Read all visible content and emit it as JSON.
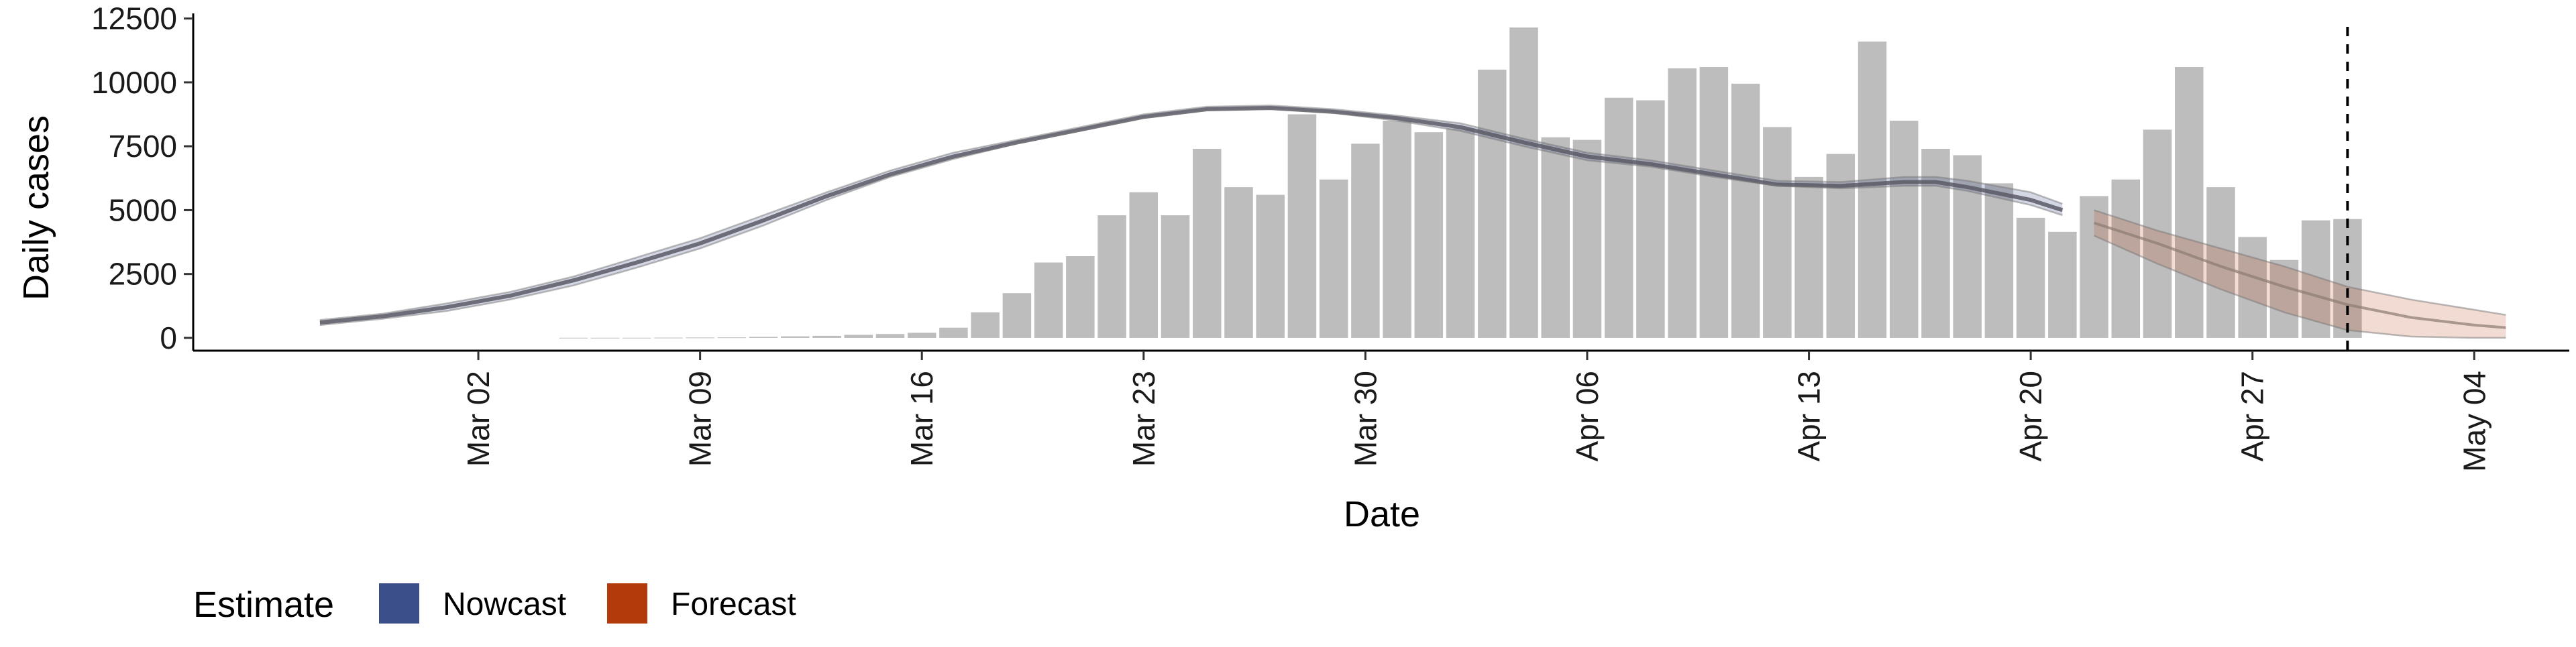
{
  "chart_data": {
    "type": "bar",
    "xlabel": "Date",
    "ylabel": "Daily cases",
    "ylim": [
      -500,
      12700
    ],
    "y_ticks": [
      0,
      2500,
      5000,
      7500,
      10000,
      12500
    ],
    "y_tick_labels": [
      "0",
      "2500",
      "5000",
      "7500",
      "10000",
      "12500"
    ],
    "xlim": [
      "2020-02-22",
      "2020-05-07"
    ],
    "x_ticks": [
      "2020-03-02",
      "2020-03-09",
      "2020-03-16",
      "2020-03-23",
      "2020-03-30",
      "2020-04-06",
      "2020-04-13",
      "2020-04-20",
      "2020-04-27",
      "2020-05-04"
    ],
    "x_tick_labels": [
      "Mar 02",
      "Mar 09",
      "Mar 16",
      "Mar 23",
      "Mar 30",
      "Apr 06",
      "Apr 13",
      "Apr 20",
      "Apr 27",
      "May 04"
    ],
    "grid": false,
    "bar_color": "#bdbdbd",
    "cases": {
      "dates": [
        "2020-03-05",
        "2020-03-06",
        "2020-03-07",
        "2020-03-08",
        "2020-03-09",
        "2020-03-10",
        "2020-03-11",
        "2020-03-12",
        "2020-03-13",
        "2020-03-14",
        "2020-03-15",
        "2020-03-16",
        "2020-03-17",
        "2020-03-18",
        "2020-03-19",
        "2020-03-20",
        "2020-03-21",
        "2020-03-22",
        "2020-03-23",
        "2020-03-24",
        "2020-03-25",
        "2020-03-26",
        "2020-03-27",
        "2020-03-28",
        "2020-03-29",
        "2020-03-30",
        "2020-03-31",
        "2020-04-01",
        "2020-04-02",
        "2020-04-03",
        "2020-04-04",
        "2020-04-05",
        "2020-04-06",
        "2020-04-07",
        "2020-04-08",
        "2020-04-09",
        "2020-04-10",
        "2020-04-11",
        "2020-04-12",
        "2020-04-13",
        "2020-04-14",
        "2020-04-15",
        "2020-04-16",
        "2020-04-17",
        "2020-04-18",
        "2020-04-19",
        "2020-04-20",
        "2020-04-21",
        "2020-04-22",
        "2020-04-23",
        "2020-04-24",
        "2020-04-25",
        "2020-04-26",
        "2020-04-27",
        "2020-04-28",
        "2020-04-29",
        "2020-04-30"
      ],
      "values": [
        5,
        5,
        5,
        10,
        15,
        20,
        40,
        60,
        80,
        120,
        150,
        200,
        400,
        1000,
        1750,
        2950,
        3200,
        4800,
        5700,
        4800,
        7400,
        5900,
        5600,
        8750,
        6200,
        7600,
        8500,
        8050,
        8200,
        10500,
        12150,
        7850,
        7750,
        9400,
        9300,
        10550,
        10600,
        9950,
        8250,
        6300,
        7200,
        11600,
        8500,
        7400,
        7150,
        6050,
        4700,
        4150,
        5550,
        6200,
        8150,
        10600,
        5900,
        3950,
        3050,
        4600,
        4650
      ]
    },
    "dashed_vline": "2020-04-30",
    "series": [
      {
        "name": "Nowcast",
        "color": "#3b4f8a",
        "dates": [
          "2020-02-26",
          "2020-02-28",
          "2020-03-01",
          "2020-03-03",
          "2020-03-05",
          "2020-03-07",
          "2020-03-09",
          "2020-03-11",
          "2020-03-13",
          "2020-03-15",
          "2020-03-17",
          "2020-03-19",
          "2020-03-21",
          "2020-03-23",
          "2020-03-25",
          "2020-03-27",
          "2020-03-29",
          "2020-03-31",
          "2020-04-02",
          "2020-04-04",
          "2020-04-06",
          "2020-04-08",
          "2020-04-10",
          "2020-04-12",
          "2020-04-14",
          "2020-04-16",
          "2020-04-17",
          "2020-04-18",
          "2020-04-20",
          "2020-04-21"
        ],
        "median": [
          600,
          850,
          1200,
          1650,
          2250,
          2950,
          3700,
          4600,
          5550,
          6400,
          7100,
          7650,
          8150,
          8650,
          8950,
          9000,
          8850,
          8600,
          8250,
          7650,
          7100,
          6800,
          6400,
          6000,
          5950,
          6100,
          6100,
          5900,
          5400,
          5000
        ],
        "lower": [
          500,
          750,
          1050,
          1500,
          2050,
          2750,
          3500,
          4400,
          5400,
          6300,
          7000,
          7600,
          8100,
          8600,
          8900,
          8950,
          8800,
          8500,
          8100,
          7500,
          6950,
          6700,
          6300,
          5950,
          5850,
          5950,
          5950,
          5750,
          5200,
          4800
        ],
        "upper": [
          700,
          950,
          1350,
          1800,
          2400,
          3150,
          3900,
          4800,
          5700,
          6550,
          7250,
          7750,
          8250,
          8750,
          9050,
          9100,
          8950,
          8700,
          8400,
          7800,
          7250,
          6950,
          6550,
          6150,
          6100,
          6300,
          6300,
          6150,
          5700,
          5250
        ]
      },
      {
        "name": "Forecast",
        "color": "#b33a0a",
        "dates": [
          "2020-04-22",
          "2020-04-24",
          "2020-04-26",
          "2020-04-28",
          "2020-04-30",
          "2020-05-02",
          "2020-05-04",
          "2020-05-05"
        ],
        "median": [
          4500,
          3700,
          2800,
          2000,
          1300,
          800,
          500,
          400
        ],
        "lower": [
          4000,
          2900,
          1900,
          1000,
          300,
          50,
          0,
          0
        ],
        "upper": [
          5000,
          4200,
          3500,
          2800,
          2000,
          1500,
          1100,
          900
        ]
      }
    ],
    "legend": {
      "title": "Estimate",
      "position": "bottom-left",
      "entries": [
        {
          "label": "Nowcast",
          "color": "#3b4f8a"
        },
        {
          "label": "Forecast",
          "color": "#b33a0a"
        }
      ]
    }
  }
}
